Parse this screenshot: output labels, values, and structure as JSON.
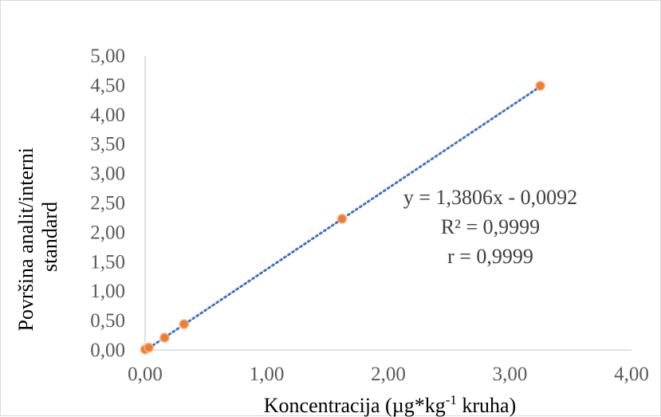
{
  "chart_data": {
    "type": "scatter",
    "title": "",
    "xlabel": {
      "main": "Koncentracija (µg*kg",
      "sup": "-1",
      "tail": " kruha)"
    },
    "ylabel": [
      "Površina analit/interni",
      "standard"
    ],
    "xlim": [
      0,
      4
    ],
    "ylim": [
      0,
      5
    ],
    "x_ticks": [
      "0,00",
      "1,00",
      "2,00",
      "3,00",
      "4,00"
    ],
    "y_ticks": [
      "0,00",
      "0,50",
      "1,00",
      "1,50",
      "2,00",
      "2,50",
      "3,00",
      "3,50",
      "4,00",
      "4,50",
      "5,00"
    ],
    "grid": false,
    "series": [
      {
        "points": [
          {
            "x": 0.0,
            "y": 0.01
          },
          {
            "x": 0.03,
            "y": 0.04
          },
          {
            "x": 0.16,
            "y": 0.21
          },
          {
            "x": 0.32,
            "y": 0.44
          },
          {
            "x": 1.62,
            "y": 2.23
          },
          {
            "x": 3.25,
            "y": 4.49
          }
        ],
        "marker_color": "#ed7d31",
        "marker_edge": "#f4b183"
      }
    ],
    "trendline": {
      "type": "linear",
      "slope": 1.3806,
      "intercept": -0.0092,
      "x_range": [
        0,
        3.25
      ],
      "color": "#4472c4",
      "style": "dotted"
    },
    "annotations": [
      "y = 1,3806x - 0,0092",
      "R² = 0,9999",
      "r = 0,9999"
    ]
  }
}
